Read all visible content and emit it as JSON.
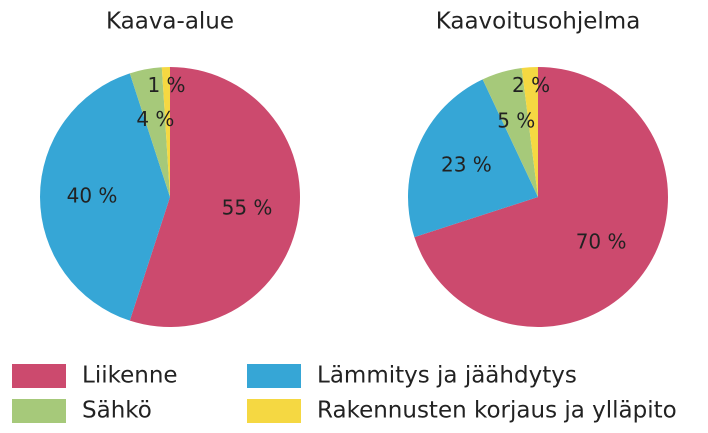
{
  "categories": [
    "Liikenne",
    "Lämmitys ja jäähdytys",
    "Sähkö",
    "Rakennusten korjaus ja ylläpito"
  ],
  "colors": [
    "#cc4a6e",
    "#36a6d6",
    "#a6c97a",
    "#f5d842"
  ],
  "chart_data": [
    {
      "type": "pie",
      "title": "Kaava-alue",
      "values": [
        55,
        40,
        4,
        1
      ],
      "value_labels": [
        "55 %",
        "40 %",
        "4 %",
        "1 %"
      ]
    },
    {
      "type": "pie",
      "title": "Kaavoitusohjelma",
      "values": [
        70,
        23,
        5,
        2
      ],
      "value_labels": [
        "70 %",
        "23 %",
        "5 %",
        "2 %"
      ]
    }
  ]
}
